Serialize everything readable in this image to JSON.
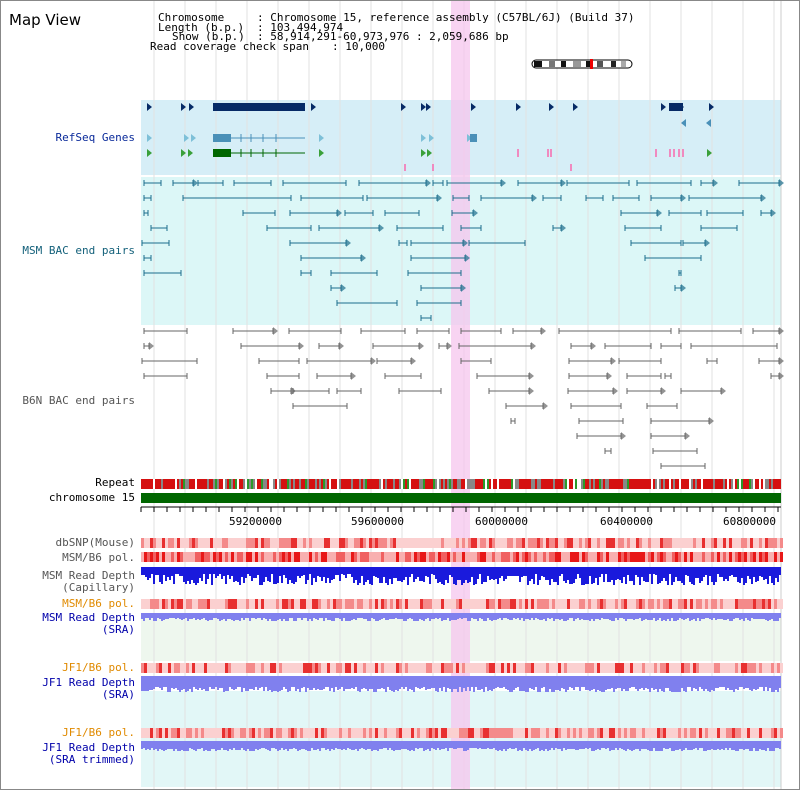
{
  "app": {
    "title": "Map View"
  },
  "header": {
    "chromosome_label": "Chromosome",
    "chromosome_value": ": Chromosome 15, reference assembly (C57BL/6J) (Build 37)",
    "length_label": "Length (b.p.)",
    "length_value": ": 103,494,974",
    "show_label": "Show (b.p.)",
    "show_value": ": 58,914,291-60,973,976 : 2,059,686 bp",
    "coverage_label": "Read coverage check span",
    "coverage_value": ": 10,000"
  },
  "tracks": {
    "refseq": "RefSeq Genes",
    "msm_bac": "MSM BAC end pairs",
    "b6n_bac": "B6N BAC end pairs",
    "repeat": "Repeat",
    "chromosome": "chromosome 15",
    "dbsnp": "dbSNP(Mouse)",
    "msm_b6_pol_1": "MSM/B6 pol.",
    "msm_depth_cap_1": "MSM Read Depth",
    "msm_depth_cap_2": "(Capillary)",
    "msm_b6_pol_2": "MSM/B6 pol.",
    "msm_depth_sra_1": "MSM Read Depth",
    "msm_depth_sra_2": "(SRA)",
    "jf1_b6_pol_1": "JF1/B6 pol.",
    "jf1_depth_sra_1": "JF1 Read Depth",
    "jf1_depth_sra_2": "(SRA)",
    "jf1_b6_pol_2": "JF1/B6 pol.",
    "jf1_depth_trim_1": "JF1 Read Depth",
    "jf1_depth_trim_2": "(SRA trimmed)"
  },
  "axis": {
    "ticks": [
      "59200000",
      "59600000",
      "60000000",
      "60400000",
      "60800000"
    ]
  },
  "colors": {
    "refseq_bg": "#d6eef7",
    "msm_bac_bg": "#dcf7f7",
    "gene_dark": "#062a66",
    "gene_mid": "#4a90b8",
    "gene_green": "#006600",
    "msm_line": "#1c6e8c",
    "b6n_line": "#666666",
    "highlight": "#f6c6ee",
    "chromosome_bar": "#006600",
    "depth_dark": "#1a1adc",
    "depth_light": "#8080ee"
  }
}
